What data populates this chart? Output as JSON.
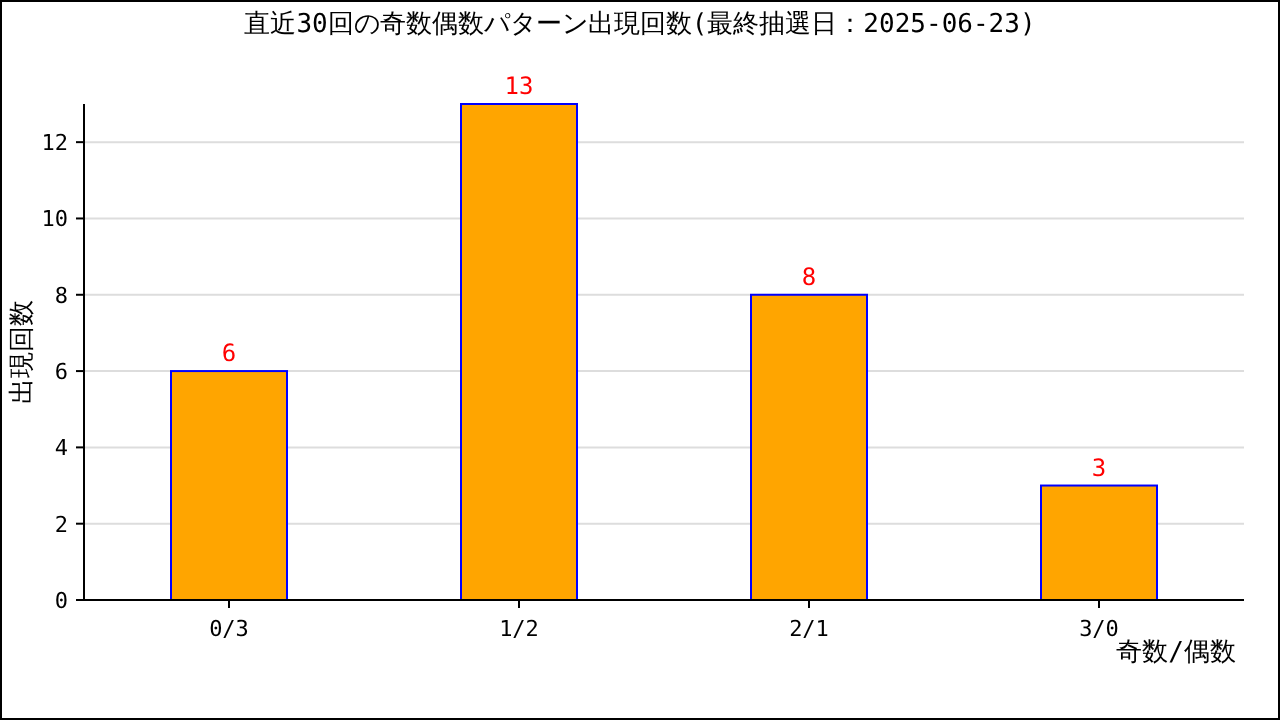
{
  "chart_data": {
    "type": "bar",
    "title": "直近30回の奇数偶数パターン出現回数(最終抽選日：2025-06-23)",
    "xlabel": "奇数/偶数",
    "ylabel": "出現回数",
    "categories": [
      "0/3",
      "1/2",
      "2/1",
      "3/0"
    ],
    "values": [
      6,
      13,
      8,
      3
    ],
    "color": "#ffa500",
    "ylim": [
      0,
      13
    ],
    "yticks": [
      0,
      2,
      4,
      6,
      8,
      10,
      12
    ],
    "grid": "y",
    "data_labels": true
  }
}
